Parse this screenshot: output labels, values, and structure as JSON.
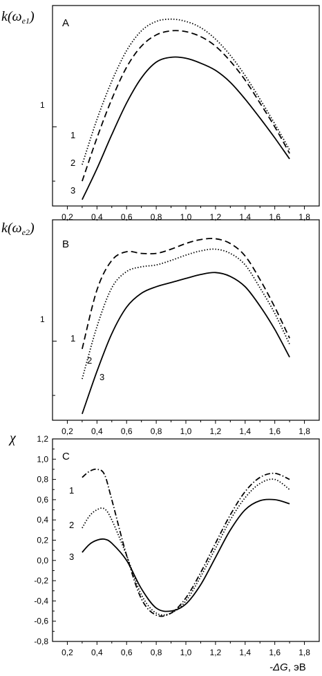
{
  "chart_data": [
    {
      "type": "line",
      "panel": "A",
      "ylabel_main": "k(ω",
      "ylabel_sub": "e1",
      "ylabel_close": ")",
      "y_scale": "log",
      "ylim": [
        0.6,
        2.2
      ],
      "xlim": [
        0.1,
        1.9
      ],
      "x_ticks": [
        "0,2",
        "0,4",
        "0,6",
        "0,8",
        "1,0",
        "1,2",
        "1,4",
        "1,6",
        "1,8"
      ],
      "y_ticks": [
        "1"
      ],
      "grid": false,
      "series": [
        {
          "name": "1",
          "style": "dotted",
          "x": [
            0.3,
            0.4,
            0.5,
            0.6,
            0.7,
            0.8,
            0.9,
            1.0,
            1.1,
            1.2,
            1.3,
            1.4,
            1.5,
            1.6,
            1.7
          ],
          "y": [
            0.78,
            1.05,
            1.35,
            1.65,
            1.88,
            2.0,
            2.03,
            2.0,
            1.92,
            1.78,
            1.6,
            1.4,
            1.2,
            1.02,
            0.86
          ]
        },
        {
          "name": "2",
          "style": "dashed",
          "x": [
            0.3,
            0.4,
            0.5,
            0.6,
            0.7,
            0.8,
            0.9,
            1.0,
            1.1,
            1.2,
            1.3,
            1.4,
            1.5,
            1.6,
            1.7
          ],
          "y": [
            0.7,
            0.93,
            1.2,
            1.48,
            1.7,
            1.83,
            1.88,
            1.87,
            1.81,
            1.7,
            1.54,
            1.36,
            1.17,
            1.0,
            0.84
          ]
        },
        {
          "name": "3",
          "style": "solid",
          "x": [
            0.3,
            0.4,
            0.5,
            0.6,
            0.7,
            0.8,
            0.9,
            1.0,
            1.1,
            1.2,
            1.3,
            1.4,
            1.5,
            1.6,
            1.7
          ],
          "y": [
            0.62,
            0.76,
            0.95,
            1.17,
            1.38,
            1.53,
            1.58,
            1.57,
            1.52,
            1.45,
            1.34,
            1.2,
            1.06,
            0.93,
            0.81
          ]
        }
      ]
    },
    {
      "type": "line",
      "panel": "B",
      "ylabel_main": "k(ω",
      "ylabel_sub": "e2",
      "ylabel_close": ")",
      "y_scale": "log",
      "ylim": [
        0.6,
        2.2
      ],
      "xlim": [
        0.1,
        1.9
      ],
      "x_ticks": [
        "0,2",
        "0,4",
        "0,6",
        "0,8",
        "1,0",
        "1,2",
        "1,4",
        "1,6",
        "1,8"
      ],
      "y_ticks": [
        "1"
      ],
      "grid": false,
      "series": [
        {
          "name": "1",
          "style": "dashed",
          "x": [
            0.3,
            0.4,
            0.5,
            0.6,
            0.7,
            0.8,
            0.9,
            1.0,
            1.1,
            1.2,
            1.3,
            1.4,
            1.5,
            1.6,
            1.7
          ],
          "y": [
            0.95,
            1.4,
            1.7,
            1.8,
            1.78,
            1.78,
            1.83,
            1.9,
            1.95,
            1.96,
            1.9,
            1.75,
            1.5,
            1.25,
            1.02
          ]
        },
        {
          "name": "2",
          "style": "dotted",
          "x": [
            0.3,
            0.4,
            0.5,
            0.6,
            0.7,
            0.8,
            0.9,
            1.0,
            1.1,
            1.2,
            1.3,
            1.4,
            1.5,
            1.6,
            1.7
          ],
          "y": [
            0.78,
            1.1,
            1.42,
            1.58,
            1.63,
            1.65,
            1.7,
            1.76,
            1.81,
            1.83,
            1.78,
            1.65,
            1.42,
            1.2,
            0.98
          ]
        },
        {
          "name": "3",
          "style": "solid",
          "x": [
            0.3,
            0.4,
            0.5,
            0.6,
            0.7,
            0.8,
            0.9,
            1.0,
            1.1,
            1.2,
            1.3,
            1.4,
            1.5,
            1.6,
            1.7
          ],
          "y": [
            0.62,
            0.82,
            1.05,
            1.25,
            1.37,
            1.43,
            1.47,
            1.51,
            1.55,
            1.57,
            1.53,
            1.43,
            1.26,
            1.08,
            0.9
          ]
        }
      ]
    },
    {
      "type": "line",
      "panel": "C",
      "ylabel_main": "χ",
      "y_scale": "linear",
      "ylim": [
        -0.8,
        1.2
      ],
      "xlim": [
        0.1,
        1.9
      ],
      "x_ticks": [
        "0,2",
        "0,4",
        "0,6",
        "0,8",
        "1,0",
        "1,2",
        "1,4",
        "1,6",
        "1,8"
      ],
      "y_ticks": [
        "-0,8",
        "-0,6",
        "-0,4",
        "-0,2",
        "0,0",
        "0,2",
        "0,4",
        "0,6",
        "0,8",
        "1,0",
        "1,2"
      ],
      "y_tick_values": [
        -0.8,
        -0.6,
        -0.4,
        -0.2,
        0.0,
        0.2,
        0.4,
        0.6,
        0.8,
        1.0,
        1.2
      ],
      "xlabel_main": "-ΔG",
      "xlabel_unit": ", эВ",
      "grid": false,
      "series": [
        {
          "name": "1",
          "style": "dashdot",
          "x": [
            0.3,
            0.35,
            0.4,
            0.45,
            0.5,
            0.6,
            0.7,
            0.8,
            0.9,
            1.0,
            1.1,
            1.2,
            1.3,
            1.4,
            1.5,
            1.6,
            1.7
          ],
          "y": [
            0.82,
            0.88,
            0.9,
            0.85,
            0.6,
            0.05,
            -0.38,
            -0.54,
            -0.52,
            -0.37,
            -0.12,
            0.17,
            0.45,
            0.68,
            0.82,
            0.86,
            0.8
          ]
        },
        {
          "name": "2",
          "style": "dotted",
          "x": [
            0.3,
            0.35,
            0.4,
            0.45,
            0.5,
            0.6,
            0.7,
            0.8,
            0.9,
            1.0,
            1.1,
            1.2,
            1.3,
            1.4,
            1.5,
            1.6,
            1.7
          ],
          "y": [
            0.32,
            0.44,
            0.5,
            0.51,
            0.4,
            0.05,
            -0.34,
            -0.52,
            -0.52,
            -0.4,
            -0.16,
            0.12,
            0.4,
            0.62,
            0.76,
            0.8,
            0.7
          ]
        },
        {
          "name": "3",
          "style": "solid",
          "x": [
            0.3,
            0.35,
            0.4,
            0.45,
            0.5,
            0.6,
            0.7,
            0.8,
            0.9,
            1.0,
            1.1,
            1.2,
            1.3,
            1.4,
            1.5,
            1.6,
            1.7
          ],
          "y": [
            0.08,
            0.16,
            0.2,
            0.21,
            0.17,
            0.0,
            -0.28,
            -0.47,
            -0.5,
            -0.43,
            -0.24,
            0.03,
            0.3,
            0.5,
            0.59,
            0.6,
            0.56
          ]
        }
      ]
    }
  ]
}
